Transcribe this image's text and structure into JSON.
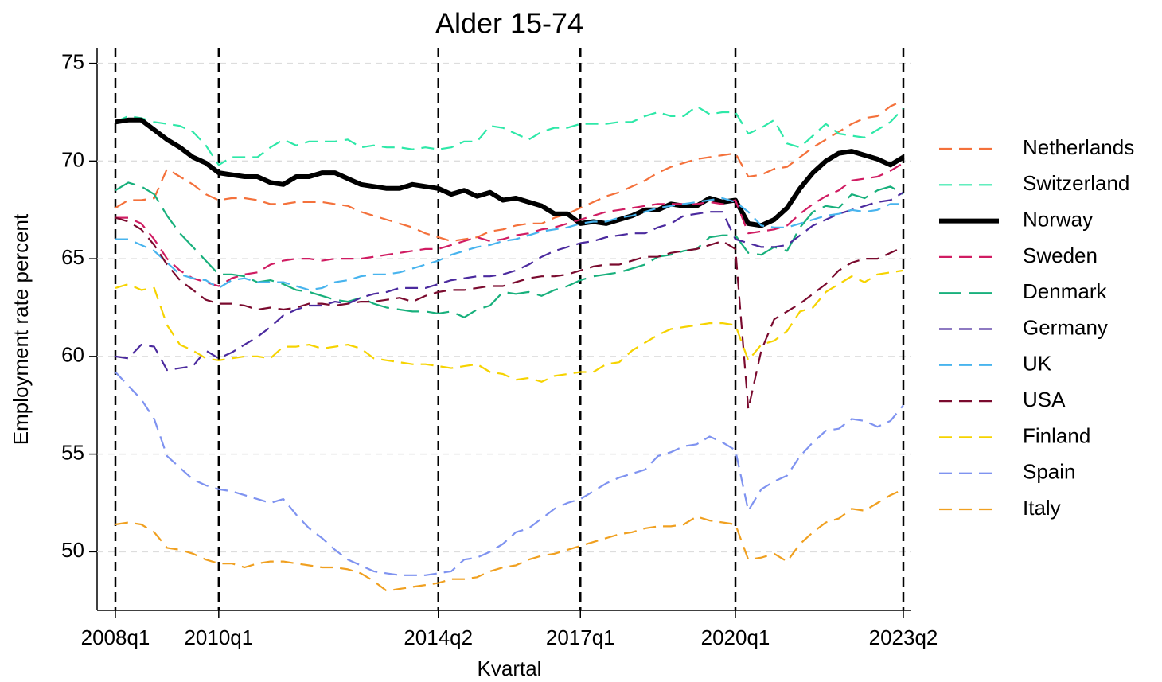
{
  "chart_data": {
    "type": "line",
    "title": "Alder 15-74",
    "ylabel": "Employment rate percent",
    "xlabel": "Kvartal",
    "categories": [
      "2008q1",
      null,
      null,
      null,
      null,
      null,
      null,
      null,
      "2010q1",
      null,
      null,
      null,
      null,
      null,
      null,
      null,
      null,
      null,
      null,
      null,
      null,
      null,
      null,
      null,
      null,
      "2014q2",
      null,
      null,
      null,
      null,
      null,
      null,
      null,
      null,
      null,
      null,
      "2017q1",
      null,
      null,
      null,
      null,
      null,
      null,
      null,
      null,
      null,
      null,
      null,
      "2020q1",
      null,
      null,
      null,
      null,
      null,
      null,
      null,
      null,
      null,
      null,
      null,
      null,
      "2023q2"
    ],
    "ylim": [
      47,
      75.8
    ],
    "yticks": [
      50,
      55,
      60,
      65,
      70,
      75
    ],
    "grid": true,
    "vlines_at_labels": true,
    "legend": "right",
    "series": [
      {
        "name": "Netherlands",
        "color": "#f4713b",
        "style": "dashed",
        "values": [
          67.6,
          68.0,
          68.0,
          68.1,
          69.6,
          69.2,
          68.8,
          68.3,
          68.0,
          68.1,
          68.1,
          68.0,
          67.8,
          67.8,
          67.9,
          67.9,
          67.9,
          67.8,
          67.7,
          67.4,
          67.2,
          67.0,
          66.8,
          66.6,
          66.3,
          66.1,
          65.9,
          66.0,
          66.1,
          66.4,
          66.5,
          66.7,
          66.8,
          66.8,
          67.1,
          67.3,
          67.6,
          67.9,
          68.2,
          68.4,
          68.7,
          69.0,
          69.4,
          69.7,
          69.9,
          70.1,
          70.2,
          70.3,
          70.4,
          69.2,
          69.3,
          69.6,
          69.7,
          70.2,
          70.7,
          71.1,
          71.5,
          71.9,
          72.2,
          72.3,
          72.8,
          73.1
        ]
      },
      {
        "name": "Switzerland",
        "color": "#2ee8a8",
        "style": "dashed",
        "values": [
          72.0,
          72.3,
          72.2,
          72.0,
          71.9,
          71.8,
          71.5,
          70.8,
          69.8,
          70.2,
          70.2,
          70.2,
          70.7,
          71.1,
          70.8,
          71.0,
          71.0,
          71.0,
          71.1,
          70.7,
          70.8,
          70.7,
          70.7,
          70.6,
          70.7,
          70.6,
          70.7,
          71.0,
          71.0,
          71.8,
          71.7,
          71.4,
          71.1,
          71.5,
          71.7,
          71.7,
          71.9,
          71.9,
          71.9,
          72.0,
          72.0,
          72.3,
          72.5,
          72.3,
          72.3,
          72.8,
          72.4,
          72.5,
          72.5,
          71.4,
          71.7,
          72.1,
          70.9,
          70.7,
          71.3,
          71.9,
          71.4,
          71.3,
          71.2,
          71.6,
          72.0,
          72.7
        ]
      },
      {
        "name": "Norway",
        "color": "#000000",
        "style": "solid",
        "values": [
          72.0,
          72.1,
          72.1,
          71.6,
          71.1,
          70.7,
          70.2,
          69.9,
          69.4,
          69.3,
          69.2,
          69.2,
          68.9,
          68.8,
          69.2,
          69.2,
          69.4,
          69.4,
          69.1,
          68.8,
          68.7,
          68.6,
          68.6,
          68.8,
          68.7,
          68.6,
          68.3,
          68.5,
          68.2,
          68.4,
          68.0,
          68.1,
          67.9,
          67.7,
          67.3,
          67.3,
          66.8,
          66.9,
          66.8,
          67.0,
          67.2,
          67.5,
          67.5,
          67.8,
          67.7,
          67.7,
          68.1,
          67.9,
          68.0,
          66.8,
          66.7,
          67.0,
          67.6,
          68.6,
          69.4,
          70.0,
          70.4,
          70.5,
          70.3,
          70.1,
          69.8,
          70.2
        ]
      },
      {
        "name": "Sweden",
        "color": "#d01c62",
        "style": "dashed",
        "values": [
          67.1,
          67.1,
          66.8,
          66.0,
          65.0,
          64.4,
          64.0,
          63.8,
          63.6,
          64.0,
          64.2,
          64.3,
          64.7,
          64.9,
          65.0,
          65.0,
          64.9,
          65.0,
          65.0,
          65.0,
          65.1,
          65.2,
          65.3,
          65.4,
          65.5,
          65.5,
          65.7,
          65.9,
          66.1,
          65.9,
          66.0,
          66.2,
          66.3,
          66.5,
          66.6,
          66.8,
          67.0,
          67.2,
          67.4,
          67.5,
          67.6,
          67.7,
          67.8,
          67.8,
          67.8,
          67.8,
          67.9,
          67.8,
          68.0,
          66.3,
          66.4,
          66.5,
          66.7,
          67.3,
          67.8,
          68.2,
          68.5,
          69.0,
          69.1,
          69.2,
          69.5,
          69.9
        ]
      },
      {
        "name": "Denmark",
        "color": "#18b07c",
        "style": "longdash",
        "values": [
          68.5,
          68.9,
          68.7,
          68.3,
          67.2,
          66.3,
          65.6,
          64.9,
          64.2,
          64.2,
          64.1,
          63.8,
          63.9,
          63.7,
          63.4,
          63.3,
          63.1,
          62.9,
          62.8,
          63.0,
          62.7,
          62.5,
          62.4,
          62.3,
          62.3,
          62.2,
          62.3,
          62.0,
          62.4,
          62.6,
          63.3,
          63.2,
          63.3,
          63.1,
          63.4,
          63.6,
          63.9,
          64.1,
          64.2,
          64.3,
          64.5,
          64.7,
          65.1,
          65.2,
          65.4,
          65.5,
          66.1,
          66.2,
          66.2,
          65.3,
          65.2,
          65.6,
          65.4,
          66.6,
          67.4,
          67.7,
          67.6,
          68.3,
          68.1,
          68.5,
          68.7,
          68.3
        ]
      },
      {
        "name": "Germany",
        "color": "#4b2a9e",
        "style": "dashed",
        "values": [
          60.0,
          59.9,
          60.6,
          60.5,
          59.3,
          59.4,
          59.5,
          60.3,
          59.9,
          60.2,
          60.6,
          61.0,
          61.5,
          62.1,
          62.4,
          62.6,
          62.6,
          62.8,
          62.7,
          63.0,
          63.2,
          63.3,
          63.5,
          63.5,
          63.5,
          63.7,
          63.9,
          64.0,
          64.1,
          64.1,
          64.2,
          64.4,
          64.7,
          65.1,
          65.4,
          65.6,
          65.8,
          65.9,
          66.1,
          66.2,
          66.3,
          66.3,
          66.6,
          66.8,
          67.2,
          67.3,
          67.4,
          67.4,
          66.0,
          65.8,
          65.6,
          65.6,
          65.7,
          66.2,
          66.7,
          67.0,
          67.3,
          67.5,
          67.7,
          67.9,
          68.0,
          68.4
        ]
      },
      {
        "name": "UK",
        "color": "#48b4ee",
        "style": "dashed",
        "values": [
          66.0,
          66.0,
          65.7,
          65.4,
          64.8,
          64.2,
          64.0,
          63.9,
          63.5,
          63.9,
          64.0,
          63.8,
          63.8,
          63.8,
          63.6,
          63.4,
          63.5,
          63.8,
          63.9,
          64.1,
          64.2,
          64.2,
          64.3,
          64.5,
          64.7,
          64.9,
          65.2,
          65.4,
          65.6,
          65.7,
          65.9,
          66.0,
          66.2,
          66.4,
          66.5,
          66.6,
          66.8,
          66.9,
          66.9,
          67.1,
          67.2,
          67.4,
          67.6,
          67.7,
          67.8,
          67.9,
          68.0,
          68.1,
          67.9,
          67.4,
          66.7,
          66.6,
          66.6,
          66.8,
          67.0,
          67.2,
          67.3,
          67.5,
          67.4,
          67.5,
          67.8,
          67.8
        ]
      },
      {
        "name": "USA",
        "color": "#7a0a2e",
        "style": "dashed",
        "values": [
          67.1,
          66.9,
          66.5,
          65.7,
          64.7,
          63.9,
          63.4,
          62.9,
          62.7,
          62.7,
          62.6,
          62.4,
          62.5,
          62.4,
          62.5,
          62.7,
          62.7,
          62.6,
          62.7,
          62.8,
          62.8,
          62.9,
          63.0,
          62.8,
          63.1,
          63.3,
          63.4,
          63.4,
          63.5,
          63.6,
          63.6,
          63.8,
          64.0,
          64.1,
          64.1,
          64.2,
          64.4,
          64.6,
          64.7,
          64.7,
          64.9,
          65.1,
          65.1,
          65.3,
          65.4,
          65.5,
          65.7,
          65.9,
          65.5,
          57.3,
          60.3,
          61.9,
          62.3,
          62.7,
          63.2,
          63.7,
          64.4,
          64.8,
          65.0,
          65.0,
          65.3,
          65.6
        ]
      },
      {
        "name": "Finland",
        "color": "#f6d300",
        "style": "dashed",
        "values": [
          63.5,
          63.7,
          63.4,
          63.5,
          61.6,
          60.6,
          60.3,
          59.9,
          59.8,
          59.9,
          60.0,
          60.0,
          59.9,
          60.5,
          60.5,
          60.6,
          60.4,
          60.5,
          60.6,
          60.4,
          59.9,
          59.8,
          59.7,
          59.6,
          59.6,
          59.5,
          59.4,
          59.5,
          59.6,
          59.2,
          59.1,
          58.8,
          58.9,
          58.7,
          59.0,
          59.1,
          59.2,
          59.2,
          59.6,
          59.7,
          60.3,
          60.7,
          61.1,
          61.4,
          61.5,
          61.6,
          61.7,
          61.7,
          61.6,
          59.8,
          60.6,
          60.8,
          61.3,
          62.3,
          62.5,
          63.3,
          63.7,
          64.1,
          63.8,
          64.2,
          64.3,
          64.4
        ]
      },
      {
        "name": "Spain",
        "color": "#7f93f0",
        "style": "dashed",
        "values": [
          59.2,
          58.5,
          57.8,
          56.8,
          54.9,
          54.3,
          53.7,
          53.4,
          53.2,
          53.1,
          52.9,
          52.7,
          52.5,
          52.7,
          51.9,
          51.2,
          50.7,
          50.1,
          49.6,
          49.3,
          49.0,
          48.9,
          48.8,
          48.8,
          48.8,
          48.9,
          49.0,
          49.6,
          49.7,
          50.0,
          50.4,
          51.0,
          51.2,
          51.7,
          52.2,
          52.5,
          52.7,
          53.1,
          53.5,
          53.8,
          54.0,
          54.2,
          54.9,
          55.1,
          55.4,
          55.5,
          55.9,
          55.6,
          55.2,
          52.1,
          53.2,
          53.6,
          53.9,
          54.9,
          55.6,
          56.2,
          56.3,
          56.8,
          56.7,
          56.4,
          56.7,
          57.5
        ]
      },
      {
        "name": "Italy",
        "color": "#f0a020",
        "style": "dashed",
        "values": [
          51.4,
          51.5,
          51.4,
          51.0,
          50.2,
          50.1,
          49.9,
          49.6,
          49.4,
          49.4,
          49.2,
          49.4,
          49.5,
          49.5,
          49.4,
          49.3,
          49.2,
          49.2,
          49.1,
          48.9,
          48.5,
          48.0,
          48.1,
          48.2,
          48.3,
          48.4,
          48.6,
          48.6,
          48.7,
          49.0,
          49.2,
          49.3,
          49.6,
          49.8,
          49.9,
          50.1,
          50.3,
          50.5,
          50.7,
          50.9,
          51.0,
          51.2,
          51.3,
          51.3,
          51.4,
          51.8,
          51.6,
          51.5,
          51.4,
          49.6,
          49.7,
          49.9,
          49.5,
          50.4,
          51.0,
          51.5,
          51.7,
          52.2,
          52.1,
          52.5,
          52.9,
          53.2
        ]
      }
    ]
  }
}
